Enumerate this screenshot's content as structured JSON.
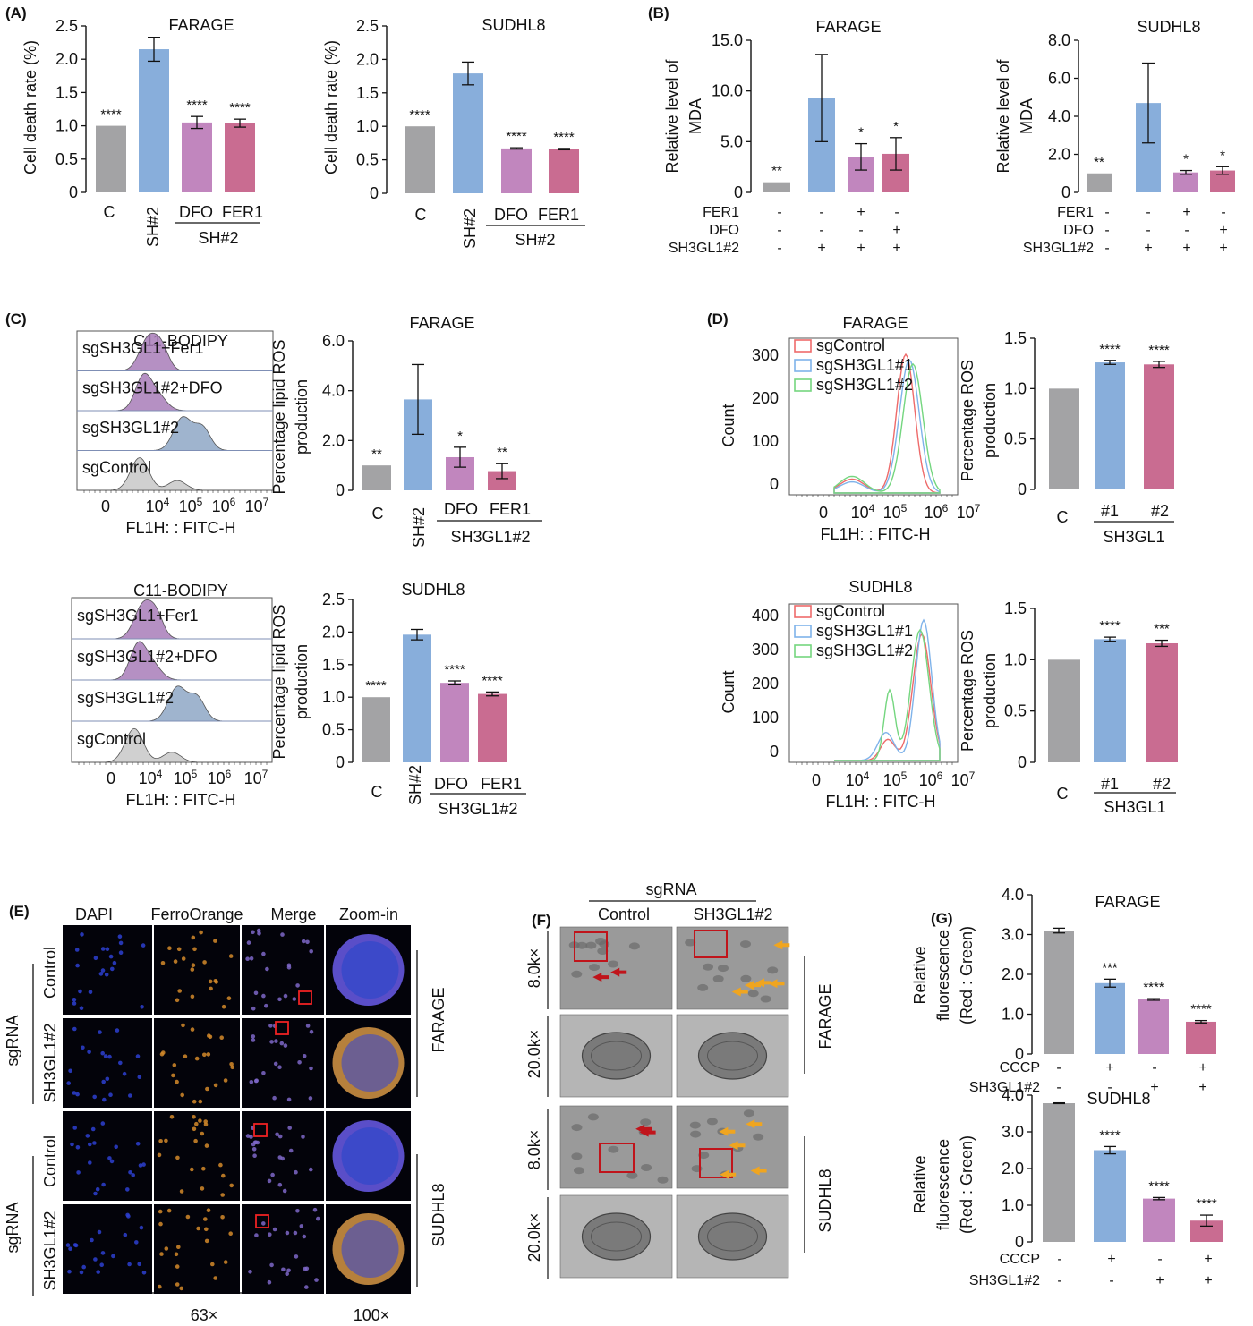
{
  "colors": {
    "gray": "#a3a3a5",
    "blue": "#88aedb",
    "purple": "#c186be",
    "pink": "#c96c91",
    "axis": "#111111",
    "flow_red": "#ee6a6a",
    "flow_blue": "#7fb3ea",
    "flow_green": "#74d67f",
    "hist_purple": "#a87cb8",
    "hist_blue": "#8ea7c6",
    "hist_gray": "#c8c8c8"
  },
  "panels": {
    "A": {
      "letter": "(A)",
      "farage": {
        "title": "FARAGE",
        "ylabel": "Cell death rate (%)",
        "group_label": "SH#2"
      },
      "sudhl8": {
        "title": "SUDHL8",
        "ylabel": "Cell death rate (%)",
        "group_label": "SH#2"
      }
    },
    "B": {
      "letter": "(B)",
      "farage": {
        "title": "FARAGE",
        "ylabel_line1": "Relative level of",
        "ylabel_line2": "MDA"
      },
      "sudhl8": {
        "title": "SUDHL8",
        "ylabel_line1": "Relative level of",
        "ylabel_line2": "MDA"
      },
      "row_labels": [
        "FER1",
        "DFO",
        "SH3GL1#2"
      ],
      "rows": [
        [
          "-",
          "-",
          "+",
          "-"
        ],
        [
          "-",
          "-",
          "-",
          "+"
        ],
        [
          "-",
          "+",
          "+",
          "+"
        ]
      ]
    },
    "C": {
      "letter": "(C)",
      "flow": {
        "title": "C11-BODIPY",
        "xlabel": "FL1H: : FITC-H",
        "samples": [
          "sgSH3GL1+Fer1",
          "sgSH3GL1#2+DFO",
          "sgSH3GL1#2",
          "sgControl"
        ],
        "xticks": [
          "0",
          "10",
          "10",
          "10",
          "10"
        ],
        "xexp": [
          "",
          "4",
          "5",
          "6",
          "7"
        ]
      },
      "farage": {
        "title": "FARAGE",
        "ylabel_line1": "Percentage lipid ROS",
        "ylabel_line2": "production",
        "group_label": "SH3GL1#2"
      },
      "sudhl8": {
        "title": "SUDHL8",
        "ylabel_line1": "Percentage lipid ROS",
        "ylabel_line2": "production",
        "group_label": "SH3GL1#2"
      }
    },
    "D": {
      "letter": "(D)",
      "flow_farage": {
        "title": "FARAGE",
        "ylabel": "Count",
        "xlabel": "FL1H: : FITC-H",
        "legend": [
          "sgControl",
          "sgSH3GL1#1",
          "sgSH3GL1#2"
        ],
        "yticks": [
          "0",
          "100",
          "200",
          "300"
        ]
      },
      "flow_sudhl8": {
        "title": "SUDHL8",
        "ylabel": "Count",
        "xlabel": "FL1H: : FITC-H",
        "legend": [
          "sgControl",
          "sgSH3GL1#1",
          "sgSH3GL1#2"
        ],
        "yticks": [
          "0",
          "100",
          "200",
          "300",
          "400"
        ]
      },
      "xticks": [
        "0",
        "10",
        "10",
        "10",
        "10"
      ],
      "xexp": [
        "",
        "4",
        "5",
        "6",
        "7"
      ],
      "bars": {
        "ylabel_line1": "Percentage ROS",
        "ylabel_line2": "production",
        "group_label": "SH3GL1"
      }
    },
    "E": {
      "letter": "(E)",
      "columns": [
        "DAPI",
        "FerroOrange",
        "Merge",
        "Zoom-in"
      ],
      "rows": [
        "Control",
        "SH3GL1#2",
        "Control",
        "SH3GL1#2"
      ],
      "side_group": "sgRNA",
      "cell_lines": [
        "FARAGE",
        "SUDHL8"
      ],
      "mag_left": "63×",
      "mag_right": "100×"
    },
    "F": {
      "letter": "(F)",
      "header": "sgRNA",
      "columns": [
        "Control",
        "SH3GL1#2"
      ],
      "mags": [
        "8.0k×",
        "20.0k×",
        "8.0k×",
        "20.0k×"
      ],
      "cell_lines": [
        "FARAGE",
        "SUDHL8"
      ]
    },
    "G": {
      "letter": "(G)",
      "farage": {
        "title": "FARAGE"
      },
      "sudhl8": {
        "title": "SUDHL8"
      },
      "ylabel_line1": "Relative",
      "ylabel_line2": "fluorescence",
      "ylabel_line3": "(Red : Green)",
      "row_labels": [
        "CCCP",
        "SH3GL1#2"
      ],
      "rows": [
        [
          "-",
          "+",
          "-",
          "+"
        ],
        [
          "-",
          "-",
          "+",
          "+"
        ]
      ]
    }
  },
  "chart_data": [
    {
      "id": "A_farage",
      "type": "bar",
      "title": "FARAGE",
      "ylabel": "Cell death rate (%)",
      "categories": [
        "C",
        "SH#2",
        "DFO",
        "FER1"
      ],
      "values": [
        1.0,
        2.15,
        1.05,
        1.04
      ],
      "errors": [
        0,
        0.18,
        0.09,
        0.06
      ],
      "sig": [
        "****",
        "",
        "****",
        "****"
      ],
      "ylim": [
        0,
        2.5
      ],
      "yticks": [
        "0",
        "0.5",
        "1.0",
        "1.5",
        "2.0",
        "2.5"
      ]
    },
    {
      "id": "A_sudhl8",
      "type": "bar",
      "title": "SUDHL8",
      "ylabel": "Cell death rate (%)",
      "categories": [
        "C",
        "SH#2",
        "DFO",
        "FER1"
      ],
      "values": [
        1.0,
        1.79,
        0.67,
        0.66
      ],
      "errors": [
        0,
        0.17,
        0.01,
        0.01
      ],
      "sig": [
        "****",
        "",
        "****",
        "****"
      ],
      "ylim": [
        0,
        2.5
      ],
      "yticks": [
        "0",
        "0.5",
        "1.0",
        "1.5",
        "2.0",
        "2.5"
      ]
    },
    {
      "id": "B_farage",
      "type": "bar",
      "title": "FARAGE",
      "ylabel": "Relative level of MDA",
      "values": [
        1.0,
        9.3,
        3.5,
        3.8
      ],
      "errors": [
        0,
        4.3,
        1.3,
        1.6
      ],
      "sig": [
        "**",
        "",
        "*",
        "*"
      ],
      "ylim": [
        0,
        15
      ],
      "yticks": [
        "0",
        "5.0",
        "10.0",
        "15.0"
      ]
    },
    {
      "id": "B_sudhl8",
      "type": "bar",
      "title": "SUDHL8",
      "ylabel": "Relative level of MDA",
      "values": [
        1.0,
        4.7,
        1.05,
        1.15
      ],
      "errors": [
        0,
        2.1,
        0.1,
        0.2
      ],
      "sig": [
        "**",
        "",
        "*",
        "*"
      ],
      "ylim": [
        0,
        8
      ],
      "yticks": [
        "0",
        "2.0",
        "4.0",
        "6.0",
        "8.0"
      ]
    },
    {
      "id": "C_farage",
      "type": "bar",
      "title": "FARAGE",
      "ylabel": "Percentage lipid ROS production",
      "categories": [
        "C",
        "SH#2",
        "DFO",
        "FER1"
      ],
      "values": [
        1.0,
        3.65,
        1.33,
        0.77
      ],
      "errors": [
        0,
        1.4,
        0.4,
        0.3
      ],
      "sig": [
        "**",
        "",
        "*",
        "**"
      ],
      "ylim": [
        0,
        6
      ],
      "yticks": [
        "0",
        "2.0",
        "4.0",
        "6.0"
      ]
    },
    {
      "id": "C_sudhl8",
      "type": "bar",
      "title": "SUDHL8",
      "ylabel": "Percentage lipid ROS production",
      "categories": [
        "C",
        "SH#2",
        "DFO",
        "FER1"
      ],
      "values": [
        1.0,
        1.96,
        1.22,
        1.05
      ],
      "errors": [
        0,
        0.08,
        0.03,
        0.03
      ],
      "sig": [
        "****",
        "",
        "****",
        "****"
      ],
      "ylim": [
        0,
        2.5
      ],
      "yticks": [
        "0",
        "0.5",
        "1.0",
        "1.5",
        "2.0",
        "2.5"
      ]
    },
    {
      "id": "D_farage",
      "type": "bar",
      "ylabel": "Percentage ROS production",
      "categories": [
        "C",
        "#1",
        "#2"
      ],
      "values": [
        1.0,
        1.26,
        1.24
      ],
      "errors": [
        0,
        0.02,
        0.03
      ],
      "sig": [
        "",
        "****",
        "****"
      ],
      "ylim": [
        0,
        1.5
      ],
      "yticks": [
        "0",
        "0.5",
        "1.0",
        "1.5"
      ]
    },
    {
      "id": "D_sudhl8",
      "type": "bar",
      "ylabel": "Percentage ROS production",
      "categories": [
        "C",
        "#1",
        "#2"
      ],
      "values": [
        1.0,
        1.2,
        1.16
      ],
      "errors": [
        0,
        0.02,
        0.03
      ],
      "sig": [
        "",
        "****",
        "***"
      ],
      "ylim": [
        0,
        1.5
      ],
      "yticks": [
        "0",
        "0.5",
        "1.0",
        "1.5"
      ]
    },
    {
      "id": "G_farage",
      "type": "bar",
      "title": "FARAGE",
      "ylabel": "Relative fluorescence (Red : Green)",
      "values": [
        3.1,
        1.78,
        1.37,
        0.81
      ],
      "errors": [
        0.06,
        0.1,
        0.02,
        0.03
      ],
      "sig": [
        "",
        "***",
        "****",
        "****"
      ],
      "ylim": [
        0,
        4
      ],
      "yticks": [
        "0",
        "1.0",
        "2.0",
        "3.0",
        "4.0"
      ]
    },
    {
      "id": "G_sudhl8",
      "type": "bar",
      "title": "SUDHL8",
      "ylabel": "Relative fluorescence (Red : Green)",
      "values": [
        3.78,
        2.5,
        1.18,
        0.58
      ],
      "errors": [
        0.01,
        0.1,
        0.03,
        0.15
      ],
      "sig": [
        "",
        "****",
        "****",
        "****"
      ],
      "ylim": [
        0,
        4
      ],
      "yticks": [
        "0",
        "1.0",
        "2.0",
        "3.0",
        "4.0"
      ]
    }
  ]
}
